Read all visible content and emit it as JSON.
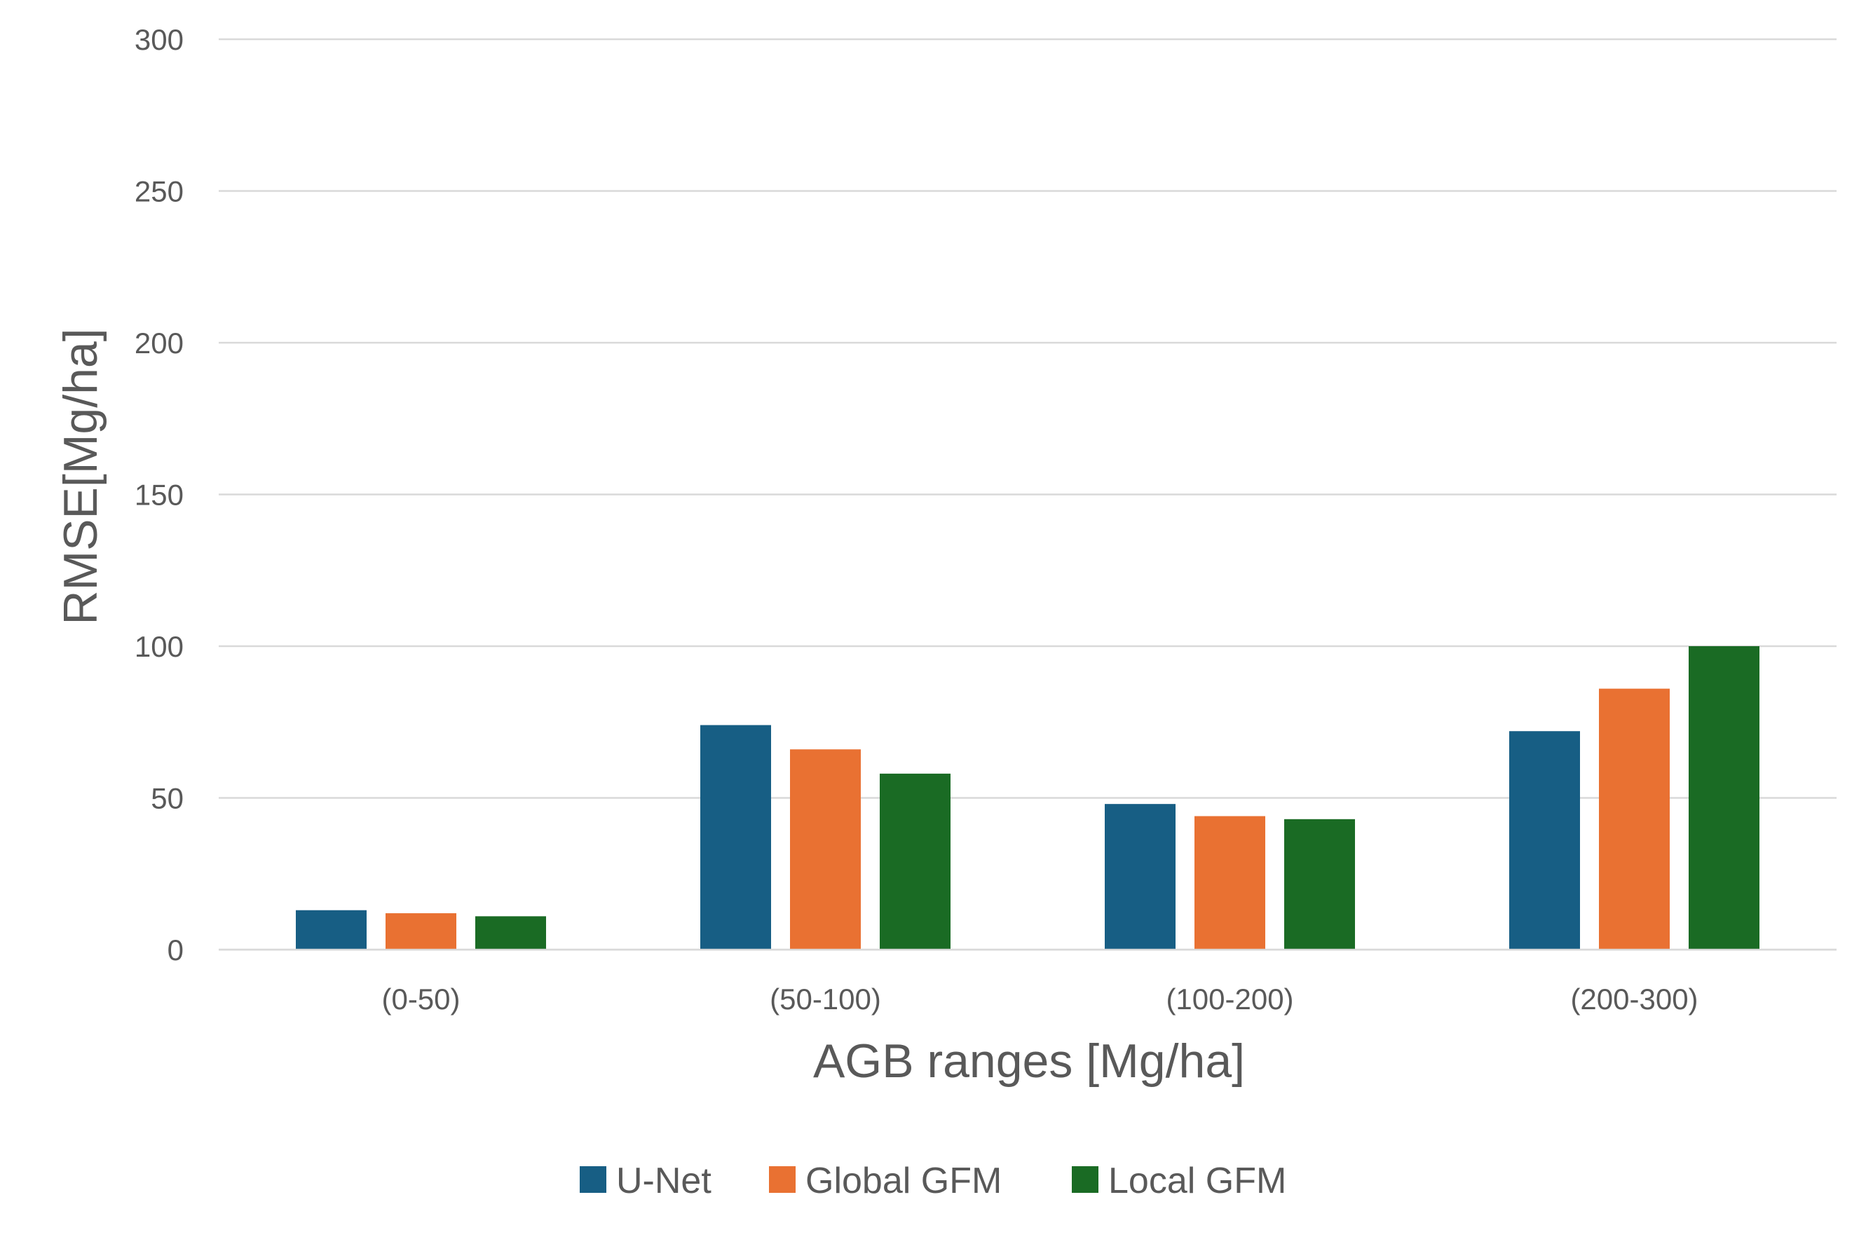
{
  "chart_data": {
    "type": "bar",
    "title": "",
    "xlabel": "AGB ranges [Mg/ha]",
    "ylabel": "RMSE[Mg/ha]",
    "categories": [
      "(0-50)",
      "(50-100)",
      "(100-200)",
      "(200-300)"
    ],
    "ylim": [
      0,
      300
    ],
    "yticks": [
      0,
      50,
      100,
      150,
      200,
      250,
      300
    ],
    "grid": true,
    "legend_position": "bottom",
    "series": [
      {
        "name": "U-Net",
        "color": "#175E84",
        "values": [
          13,
          74,
          48,
          72
        ]
      },
      {
        "name": "Global GFM",
        "color": "#E97132",
        "values": [
          12,
          66,
          44,
          86
        ]
      },
      {
        "name": "Local GFM",
        "color": "#1A6B24",
        "values": [
          11,
          58,
          43,
          100
        ]
      }
    ]
  }
}
